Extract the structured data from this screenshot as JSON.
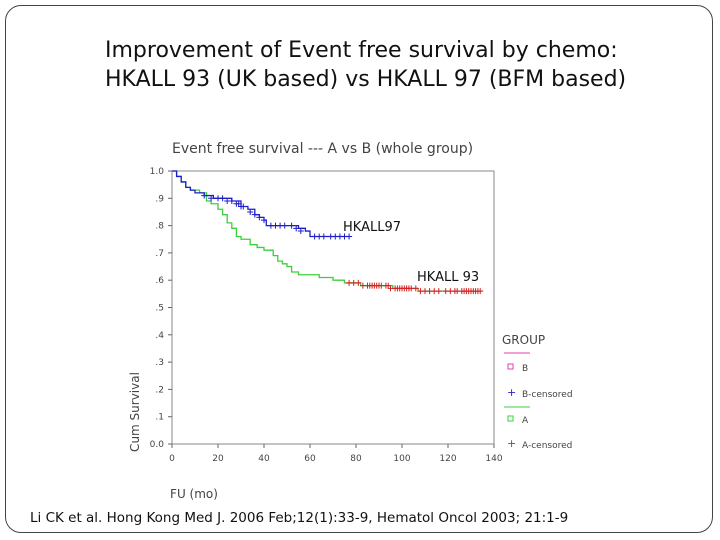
{
  "slide": {
    "title_line1": "Improvement of Event free survival by chemo:",
    "title_line2": "HKALL 93 (UK based) vs HKALL 97 (BFM based)",
    "citation": "Li CK et al. Hong Kong Med J. 2006 Feb;12(1):33-9, Hematol Oncol 2003; 21:1-9"
  },
  "chart_data": {
    "type": "line",
    "title": "Event free survival --- A vs B (whole group)",
    "xlabel": "FU (mo)",
    "ylabel": "Cum Survival",
    "xlim": [
      0,
      140
    ],
    "ylim": [
      0,
      1.0
    ],
    "x_ticks": [
      "0",
      "20",
      "40",
      "60",
      "80",
      "100",
      "120",
      "140"
    ],
    "y_ticks": [
      "0.0",
      ".1",
      ".2",
      ".3",
      ".4",
      ".5",
      ".6",
      ".7",
      ".8",
      ".9",
      "1.0"
    ],
    "legend": {
      "title": "GROUP",
      "placement": "right",
      "entries": [
        "B",
        "B-censored",
        "A",
        "A-censored"
      ]
    },
    "annotations": [
      {
        "text": "HKALL97",
        "x": 75,
        "y": 0.81
      },
      {
        "text": "HKALL 93",
        "x": 107,
        "y": 0.63
      }
    ],
    "series": [
      {
        "name": "B",
        "color": "#1f1fc8",
        "steps": [
          [
            0,
            1.0
          ],
          [
            2,
            0.98
          ],
          [
            4,
            0.96
          ],
          [
            6,
            0.94
          ],
          [
            8,
            0.93
          ],
          [
            10,
            0.92
          ],
          [
            14,
            0.91
          ],
          [
            18,
            0.9
          ],
          [
            26,
            0.89
          ],
          [
            30,
            0.87
          ],
          [
            33,
            0.86
          ],
          [
            36,
            0.84
          ],
          [
            38,
            0.83
          ],
          [
            40,
            0.82
          ],
          [
            41,
            0.8
          ],
          [
            55,
            0.79
          ],
          [
            58,
            0.78
          ],
          [
            60,
            0.76
          ],
          [
            77,
            0.76
          ]
        ],
        "censored": [
          [
            14,
            0.91
          ],
          [
            17,
            0.9
          ],
          [
            20,
            0.9
          ],
          [
            22,
            0.9
          ],
          [
            24,
            0.89
          ],
          [
            26,
            0.89
          ],
          [
            28,
            0.88
          ],
          [
            29,
            0.88
          ],
          [
            30,
            0.87
          ],
          [
            31,
            0.87
          ],
          [
            34,
            0.85
          ],
          [
            36,
            0.84
          ],
          [
            38,
            0.83
          ],
          [
            40,
            0.82
          ],
          [
            43,
            0.8
          ],
          [
            45,
            0.8
          ],
          [
            47,
            0.8
          ],
          [
            49,
            0.8
          ],
          [
            52,
            0.8
          ],
          [
            54,
            0.79
          ],
          [
            56,
            0.78
          ],
          [
            62,
            0.76
          ],
          [
            64,
            0.76
          ],
          [
            66,
            0.76
          ],
          [
            69,
            0.76
          ],
          [
            71,
            0.76
          ],
          [
            73,
            0.76
          ],
          [
            75,
            0.76
          ],
          [
            77,
            0.76
          ]
        ]
      },
      {
        "name": "A",
        "color": "#3ccf3c",
        "steps": [
          [
            0,
            1.0
          ],
          [
            2,
            0.98
          ],
          [
            4,
            0.96
          ],
          [
            6,
            0.94
          ],
          [
            8,
            0.93
          ],
          [
            12,
            0.92
          ],
          [
            15,
            0.89
          ],
          [
            17,
            0.88
          ],
          [
            20,
            0.86
          ],
          [
            22,
            0.84
          ],
          [
            24,
            0.81
          ],
          [
            26,
            0.79
          ],
          [
            28,
            0.76
          ],
          [
            30,
            0.75
          ],
          [
            34,
            0.73
          ],
          [
            37,
            0.72
          ],
          [
            40,
            0.71
          ],
          [
            44,
            0.69
          ],
          [
            46,
            0.67
          ],
          [
            48,
            0.66
          ],
          [
            50,
            0.65
          ],
          [
            52,
            0.63
          ],
          [
            55,
            0.62
          ],
          [
            64,
            0.61
          ],
          [
            70,
            0.6
          ],
          [
            75,
            0.59
          ],
          [
            80,
            0.59
          ],
          [
            82,
            0.58
          ],
          [
            88,
            0.58
          ],
          [
            96,
            0.57
          ],
          [
            104,
            0.57
          ],
          [
            107,
            0.56
          ],
          [
            135,
            0.56
          ]
        ],
        "censored": [
          [
            77,
            0.59
          ],
          [
            79,
            0.59
          ],
          [
            81,
            0.59
          ],
          [
            83,
            0.58
          ],
          [
            85,
            0.58
          ],
          [
            86,
            0.58
          ],
          [
            87,
            0.58
          ],
          [
            88,
            0.58
          ],
          [
            89,
            0.58
          ],
          [
            90,
            0.58
          ],
          [
            91,
            0.58
          ],
          [
            93,
            0.58
          ],
          [
            94,
            0.58
          ],
          [
            95,
            0.57
          ],
          [
            97,
            0.57
          ],
          [
            98,
            0.57
          ],
          [
            99,
            0.57
          ],
          [
            100,
            0.57
          ],
          [
            101,
            0.57
          ],
          [
            102,
            0.57
          ],
          [
            103,
            0.57
          ],
          [
            104,
            0.57
          ],
          [
            106,
            0.57
          ],
          [
            108,
            0.56
          ],
          [
            110,
            0.56
          ],
          [
            112,
            0.56
          ],
          [
            114,
            0.56
          ],
          [
            116,
            0.56
          ],
          [
            119,
            0.56
          ],
          [
            121,
            0.56
          ],
          [
            123,
            0.56
          ],
          [
            124,
            0.56
          ],
          [
            126,
            0.56
          ],
          [
            127,
            0.56
          ],
          [
            128,
            0.56
          ],
          [
            129,
            0.56
          ],
          [
            130,
            0.56
          ],
          [
            131,
            0.56
          ],
          [
            132,
            0.56
          ],
          [
            133,
            0.56
          ],
          [
            134,
            0.56
          ]
        ]
      },
      {
        "name": "A-censored",
        "color": "#d42020"
      }
    ],
    "grid": false
  },
  "colors": {
    "B": "#e040b0",
    "B_censored": "#1f1fc8",
    "A": "#3ccf3c",
    "A_censored": "#d42020",
    "chart_text": "#444444",
    "axis": "#666666"
  }
}
